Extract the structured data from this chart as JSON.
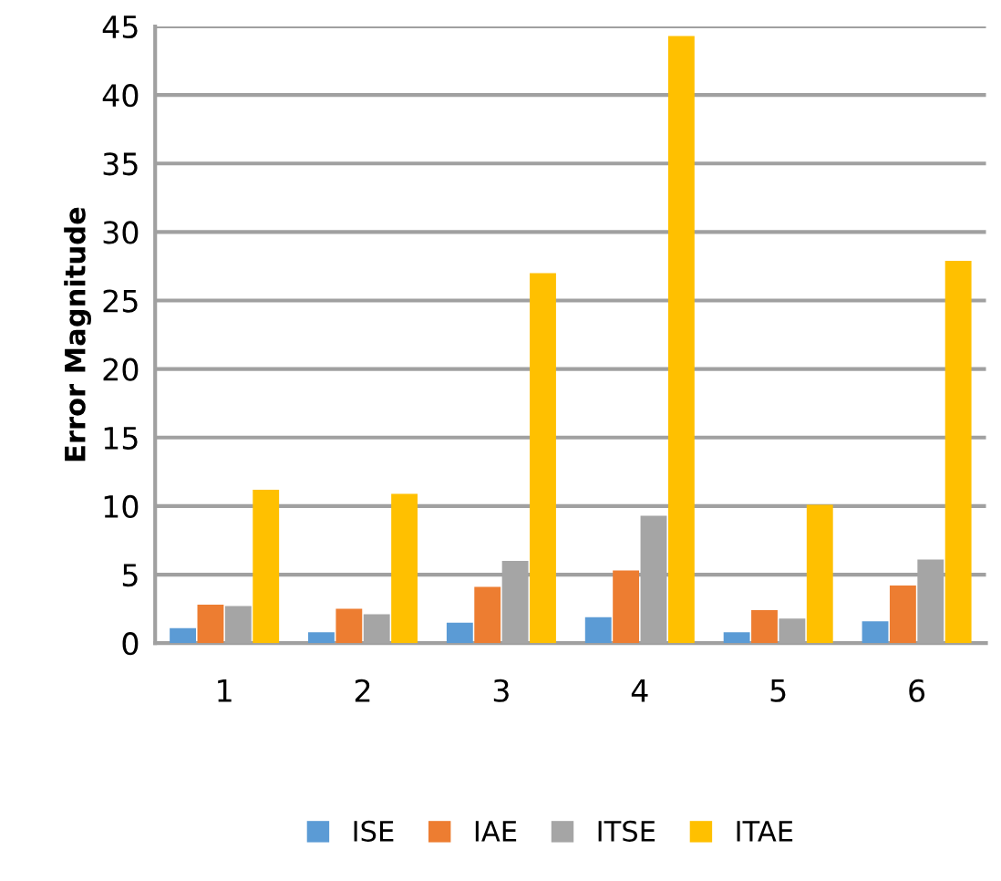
{
  "chart_data": {
    "type": "bar",
    "ylabel": "Error Magnitude",
    "categories": [
      "1",
      "2",
      "3",
      "4",
      "5",
      "6"
    ],
    "series": [
      {
        "name": "ISE",
        "color": "#5b9bd5",
        "values": [
          1.1,
          0.8,
          1.5,
          1.9,
          0.8,
          1.6
        ]
      },
      {
        "name": "IAE",
        "color": "#ed7d31",
        "values": [
          2.8,
          2.5,
          4.1,
          5.3,
          2.4,
          4.2
        ]
      },
      {
        "name": "ITSE",
        "color": "#a5a5a5",
        "values": [
          2.7,
          2.1,
          6.0,
          9.3,
          1.8,
          6.1
        ]
      },
      {
        "name": "ITAE",
        "color": "#ffc000",
        "values": [
          11.2,
          10.9,
          27.0,
          44.3,
          10.1,
          27.9
        ]
      }
    ],
    "ylim": [
      0,
      45
    ],
    "yticks": [
      0,
      5,
      10,
      15,
      20,
      25,
      30,
      35,
      40,
      45
    ],
    "grid": "y",
    "legend": "bottom"
  }
}
